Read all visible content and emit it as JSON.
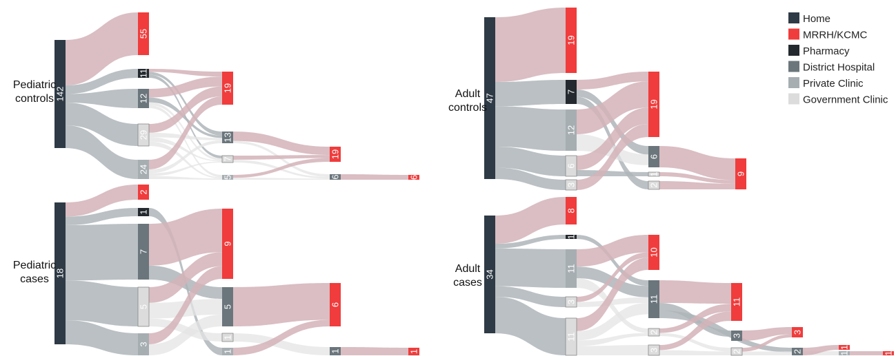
{
  "colors": {
    "home": "#2e3a45",
    "mrrh": "#f03c3c",
    "pharmacy": "#23292e",
    "district": "#6b767c",
    "private": "#a6aeb2",
    "government": "#dcdcdc",
    "link_red": "#d3b3b9",
    "link_gray": "#aeb5b8",
    "link_light": "#e4e4e4"
  },
  "legend": [
    {
      "label": "Home",
      "color_key": "home"
    },
    {
      "label": "MRRH/KCMC",
      "color_key": "mrrh"
    },
    {
      "label": "Pharmacy",
      "color_key": "pharmacy"
    },
    {
      "label": "District Hospital",
      "color_key": "district"
    },
    {
      "label": "Private Clinic",
      "color_key": "private"
    },
    {
      "label": "Government Clinic",
      "color_key": "government"
    }
  ],
  "diagrams": [
    {
      "id": "pediatric-controls",
      "label_lines": [
        "Pediatric",
        "controls"
      ],
      "nodes": [
        {
          "id": "home",
          "value": "142",
          "type": "home"
        },
        {
          "id": "m1",
          "value": "55",
          "type": "mrrh"
        },
        {
          "id": "p1",
          "value": "11",
          "type": "pharmacy"
        },
        {
          "id": "d1",
          "value": "12",
          "type": "district"
        },
        {
          "id": "g1",
          "value": "29",
          "type": "government"
        },
        {
          "id": "pr1",
          "value": "24",
          "type": "private"
        },
        {
          "id": "m2",
          "value": "19",
          "type": "mrrh"
        },
        {
          "id": "d2",
          "value": "13",
          "type": "district"
        },
        {
          "id": "g2",
          "value": "7",
          "type": "government"
        },
        {
          "id": "pr2",
          "value": "5",
          "type": "private"
        },
        {
          "id": "m3",
          "value": "19",
          "type": "mrrh"
        },
        {
          "id": "d3",
          "value": "6",
          "type": "district"
        },
        {
          "id": "m4",
          "value": "6",
          "type": "mrrh"
        }
      ]
    },
    {
      "id": "pediatric-cases",
      "label_lines": [
        "Pediatric",
        "cases"
      ],
      "nodes": [
        {
          "id": "home",
          "value": "18",
          "type": "home"
        },
        {
          "id": "m1",
          "value": "2",
          "type": "mrrh"
        },
        {
          "id": "p1",
          "value": "1",
          "type": "pharmacy"
        },
        {
          "id": "d1",
          "value": "7",
          "type": "district"
        },
        {
          "id": "g1",
          "value": "5",
          "type": "government"
        },
        {
          "id": "pr1",
          "value": "3",
          "type": "private"
        },
        {
          "id": "m2",
          "value": "9",
          "type": "mrrh"
        },
        {
          "id": "d2",
          "value": "5",
          "type": "district"
        },
        {
          "id": "g2",
          "value": "1",
          "type": "government"
        },
        {
          "id": "pr2",
          "value": "1",
          "type": "private"
        },
        {
          "id": "m3",
          "value": "6",
          "type": "mrrh"
        },
        {
          "id": "d3",
          "value": "1",
          "type": "district"
        },
        {
          "id": "m4",
          "value": "1",
          "type": "mrrh"
        }
      ]
    },
    {
      "id": "adult-controls",
      "label_lines": [
        "Adult",
        "controls"
      ],
      "nodes": [
        {
          "id": "home",
          "value": "47",
          "type": "home"
        },
        {
          "id": "m1",
          "value": "19",
          "type": "mrrh"
        },
        {
          "id": "p1",
          "value": "7",
          "type": "pharmacy"
        },
        {
          "id": "pr1",
          "value": "12",
          "type": "private"
        },
        {
          "id": "g1",
          "value": "6",
          "type": "government"
        },
        {
          "id": "x1",
          "value": "3",
          "type": "government"
        },
        {
          "id": "m2",
          "value": "19",
          "type": "mrrh"
        },
        {
          "id": "d2",
          "value": "6",
          "type": "district"
        },
        {
          "id": "g2",
          "value": "1",
          "type": "government"
        },
        {
          "id": "x2",
          "value": "2",
          "type": "government"
        },
        {
          "id": "m3",
          "value": "9",
          "type": "mrrh"
        }
      ]
    },
    {
      "id": "adult-cases",
      "label_lines": [
        "Adult",
        "cases"
      ],
      "nodes": [
        {
          "id": "home",
          "value": "34",
          "type": "home"
        },
        {
          "id": "m1",
          "value": "8",
          "type": "mrrh"
        },
        {
          "id": "p1",
          "value": "1",
          "type": "pharmacy"
        },
        {
          "id": "pr1",
          "value": "11",
          "type": "private"
        },
        {
          "id": "g1",
          "value": "3",
          "type": "government"
        },
        {
          "id": "x1",
          "value": "11",
          "type": "government"
        },
        {
          "id": "m2",
          "value": "10",
          "type": "mrrh"
        },
        {
          "id": "d2",
          "value": "11",
          "type": "district"
        },
        {
          "id": "g2",
          "value": "2",
          "type": "government"
        },
        {
          "id": "x2",
          "value": "3",
          "type": "government"
        },
        {
          "id": "m3",
          "value": "11",
          "type": "mrrh"
        },
        {
          "id": "d3",
          "value": "3",
          "type": "district"
        },
        {
          "id": "y3",
          "value": "2",
          "type": "government"
        },
        {
          "id": "m4",
          "value": "3",
          "type": "mrrh"
        },
        {
          "id": "d4",
          "value": "2",
          "type": "district"
        },
        {
          "id": "y4",
          "value": "1",
          "type": "private"
        },
        {
          "id": "m5",
          "value": "1",
          "type": "mrrh"
        },
        {
          "id": "m6",
          "value": "1",
          "type": "mrrh"
        }
      ]
    }
  ]
}
